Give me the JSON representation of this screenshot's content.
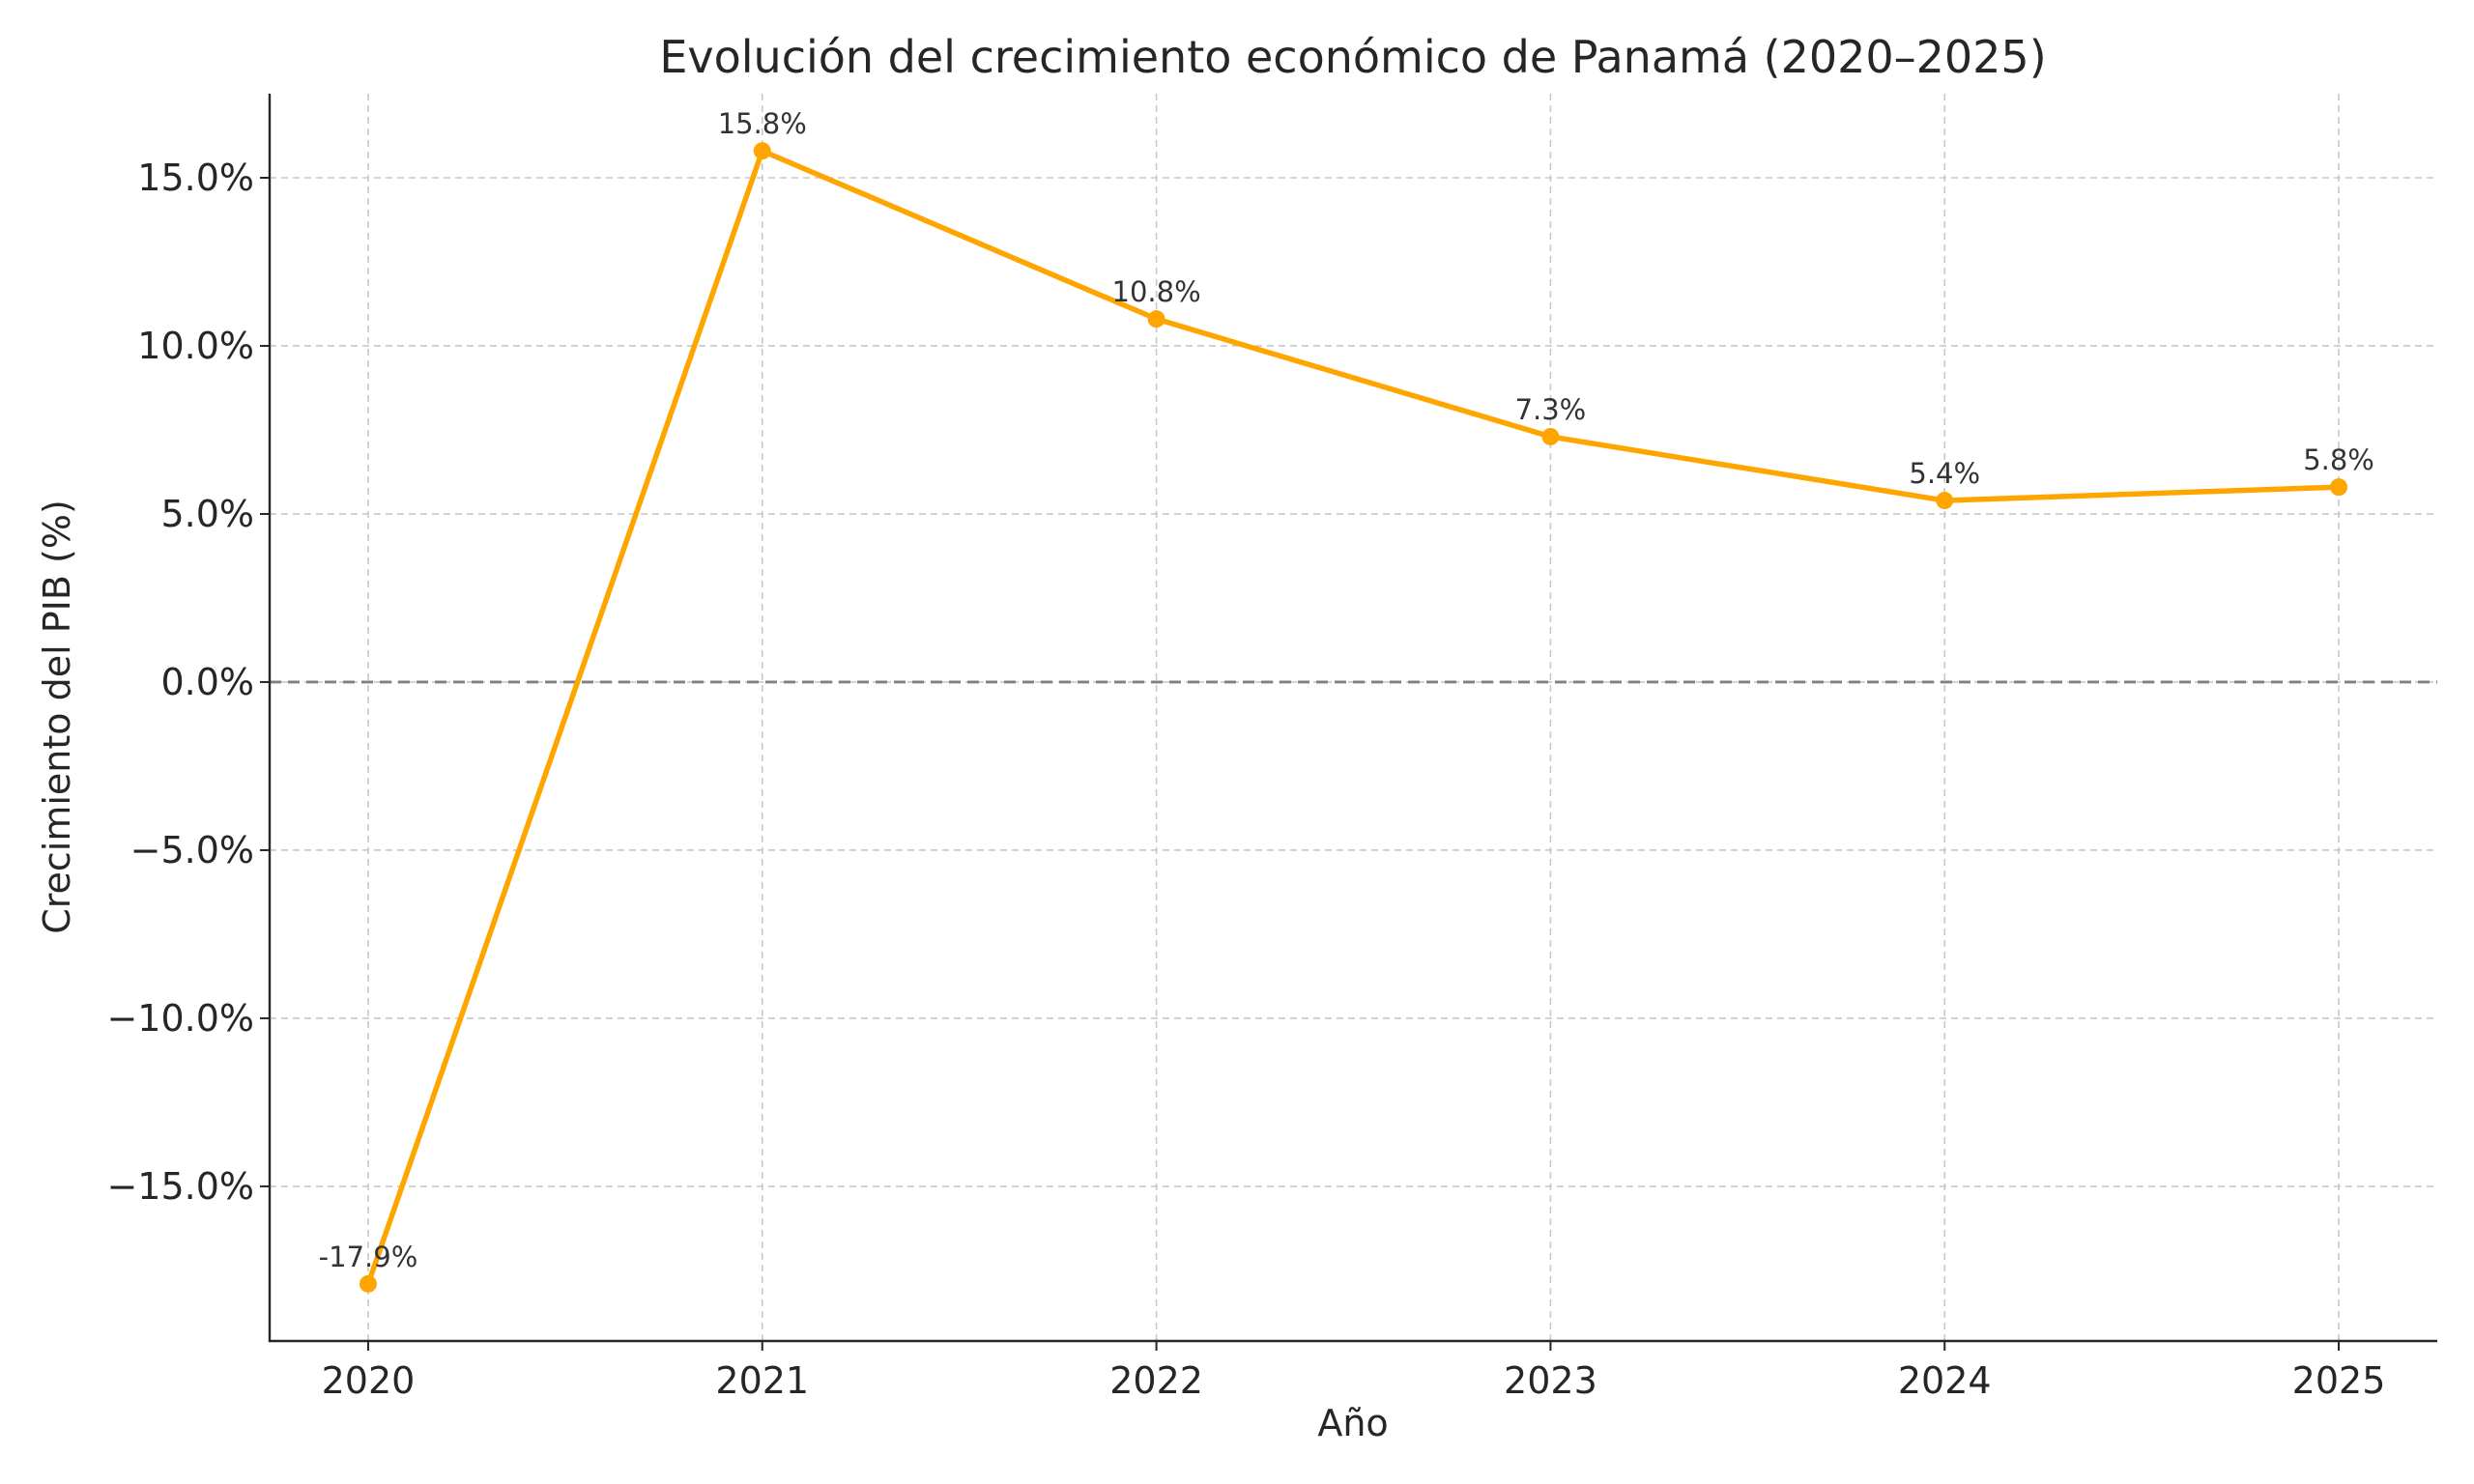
{
  "chart_data": {
    "type": "line",
    "title": "Evolución del crecimiento económico de Panamá (2020–2025)",
    "xlabel": "Año",
    "ylabel": "Crecimiento del PIB (%)",
    "x": [
      2020,
      2021,
      2022,
      2023,
      2024,
      2025
    ],
    "x_tick_labels": [
      "2020",
      "2021",
      "2022",
      "2023",
      "2024",
      "2025"
    ],
    "series": [
      {
        "values": [
          -17.9,
          15.8,
          10.8,
          7.3,
          5.4,
          5.8
        ],
        "data_labels": [
          "-17.9%",
          "15.8%",
          "10.8%",
          "7.3%",
          "5.4%",
          "5.8%"
        ],
        "color": "#FFA500",
        "marker": "circle"
      }
    ],
    "y_ticks": [
      15,
      10,
      5,
      0,
      -5,
      -10,
      -15
    ],
    "y_tick_labels": [
      "15.0%",
      "10.0%",
      "5.0%",
      "0.0%",
      "−5.0%",
      "−10.0%",
      "−15.0%"
    ],
    "ylim": [
      -19.6,
      17.5
    ],
    "xlim": [
      2019.75,
      2025.25
    ],
    "grid": true,
    "reference_line": {
      "y": 0,
      "color": "#808080",
      "style": "dashed"
    },
    "legend": "none"
  }
}
